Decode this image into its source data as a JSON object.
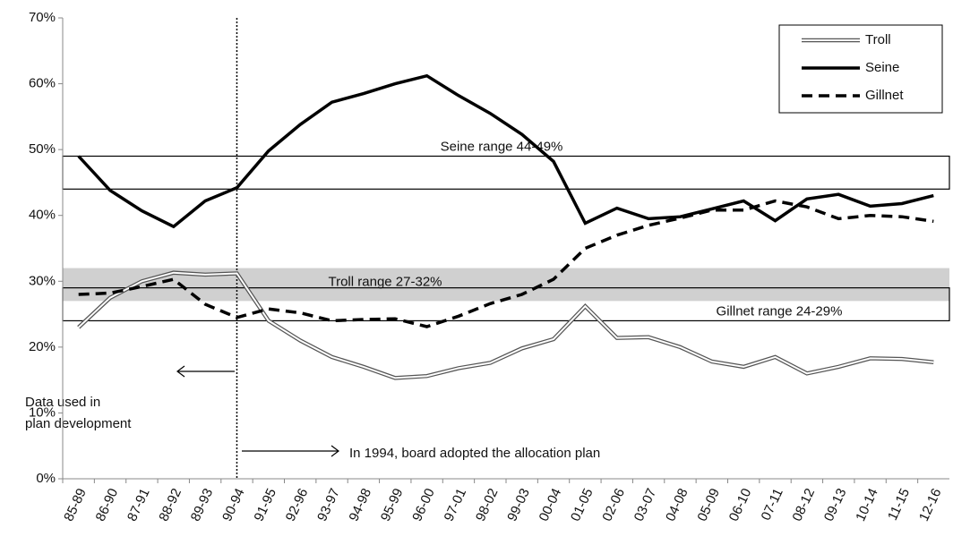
{
  "chart_data": {
    "type": "line",
    "categories": [
      "85-89",
      "86-90",
      "87-91",
      "88-92",
      "89-93",
      "90-94",
      "91-95",
      "92-96",
      "93-97",
      "94-98",
      "95-99",
      "96-00",
      "97-01",
      "98-02",
      "99-03",
      "00-04",
      "01-05",
      "02-06",
      "03-07",
      "04-08",
      "05-09",
      "06-10",
      "07-11",
      "08-12",
      "09-13",
      "10-14",
      "11-15",
      "12-16"
    ],
    "series": [
      {
        "name": "Troll",
        "color": "#555555",
        "style": "double",
        "values": [
          23,
          27.5,
          30,
          31.3,
          31,
          31.2,
          24,
          21,
          18.5,
          17,
          15.3,
          15.6,
          16.8,
          17.6,
          19.8,
          21.2,
          26.2,
          21.4,
          21.5,
          20,
          17.8,
          17,
          18.5,
          16,
          17,
          18.3,
          18.2,
          17.7
        ]
      },
      {
        "name": "Seine",
        "color": "#000000",
        "style": "solid",
        "values": [
          49,
          43.8,
          40.7,
          38.3,
          42.2,
          44.2,
          49.8,
          53.8,
          57.2,
          58.5,
          60,
          61.2,
          58.2,
          55.5,
          52.3,
          48.2,
          38.8,
          41.1,
          39.5,
          39.8,
          41,
          42.2,
          39.2,
          42.5,
          43.2,
          41.4,
          41.8,
          43
        ]
      },
      {
        "name": "Gillnet",
        "color": "#000000",
        "style": "dashed",
        "values": [
          28,
          28.2,
          29.2,
          30.3,
          26.5,
          24.5,
          25.8,
          25.2,
          24,
          24.2,
          24.3,
          23.1,
          24.7,
          26.6,
          28,
          30.3,
          35,
          37,
          38.5,
          39.6,
          40.8,
          40.8,
          42.2,
          41.3,
          39.5,
          40,
          39.8,
          39.1
        ]
      }
    ],
    "ranges": [
      {
        "label": "Seine range 44-49%",
        "low": 44,
        "high": 49,
        "fill": "none"
      },
      {
        "label": "Troll range 27-32%",
        "low": 27,
        "high": 32,
        "fill": "#d0d0d0"
      },
      {
        "label": "Gillnet range 24-29%",
        "low": 24,
        "high": 29,
        "fill": "none"
      }
    ],
    "annotations": [
      "Data used in",
      "plan development",
      "In 1994, board adopted the allocation plan"
    ],
    "ylim": [
      0,
      70
    ],
    "yticks": [
      {
        "value": 0,
        "label": "0%"
      },
      {
        "value": 10,
        "label": "10%"
      },
      {
        "value": 20,
        "label": "20%"
      },
      {
        "value": 30,
        "label": "30%"
      },
      {
        "value": 40,
        "label": "40%"
      },
      {
        "value": 50,
        "label": "50%"
      },
      {
        "value": 60,
        "label": "60%"
      },
      {
        "value": 70,
        "label": "70%"
      }
    ],
    "legend": "top-right"
  }
}
